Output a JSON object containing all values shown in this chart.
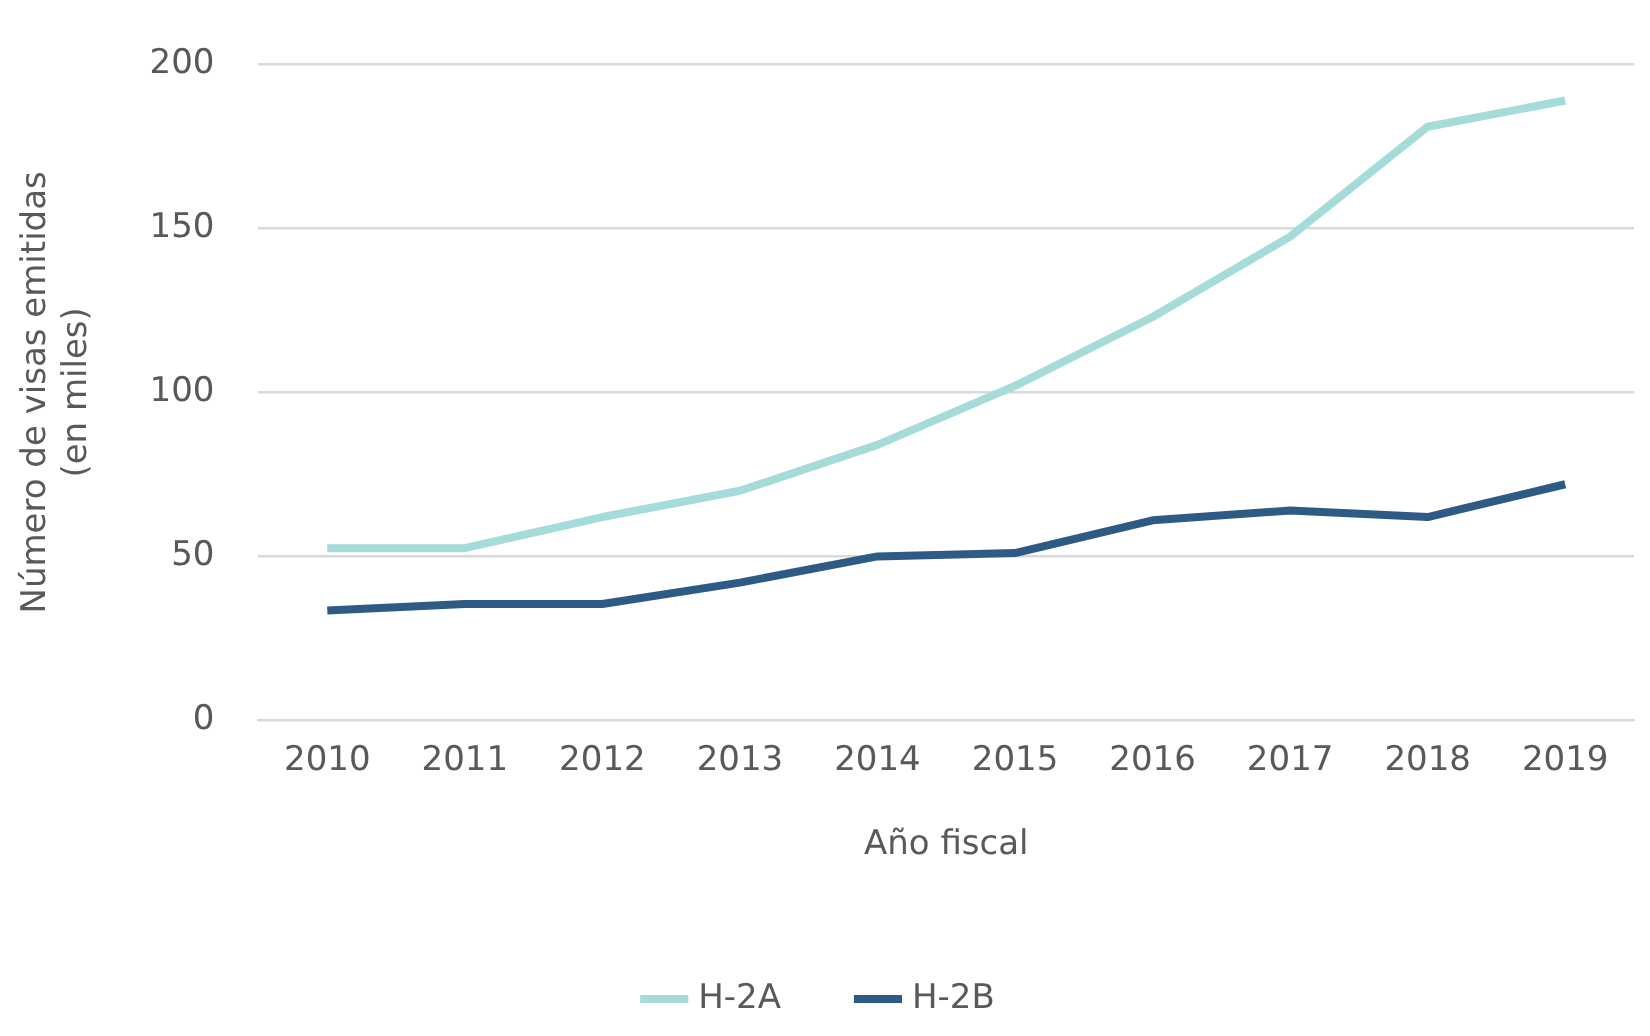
{
  "chart_data": {
    "type": "line",
    "xlabel": "Año fiscal",
    "ylabel": "Número de visas emitidas\n(en miles)",
    "categories": [
      "2010",
      "2011",
      "2012",
      "2013",
      "2014",
      "2015",
      "2016",
      "2017",
      "2018",
      "2019"
    ],
    "series": [
      {
        "name": "H-2A",
        "color": "#a5dbd8",
        "values": [
          52.5,
          52.5,
          62,
          70,
          84,
          102,
          123,
          147.5,
          181,
          189
        ]
      },
      {
        "name": "H-2B",
        "color": "#2e5b83",
        "values": [
          33.5,
          35.5,
          35.5,
          42,
          50,
          51,
          61,
          64,
          62,
          72
        ]
      }
    ],
    "ylim": [
      0,
      200
    ],
    "yticks": [
      0,
      50,
      100,
      150,
      200
    ],
    "grid": "y",
    "legend": "bottom",
    "marker": "none",
    "line_style": "solid"
  }
}
